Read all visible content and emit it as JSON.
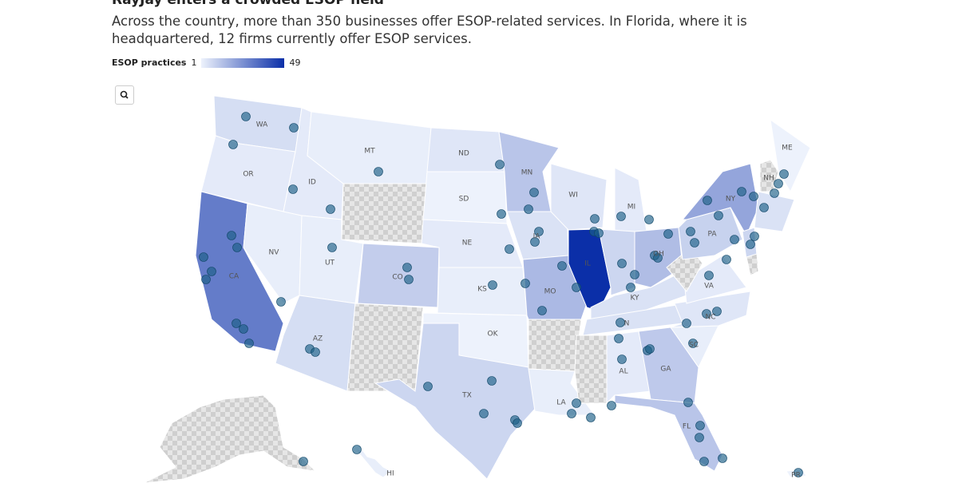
{
  "header": {
    "title": "RayJay enters a crowded ESOP field",
    "subtitle": "Across the country, more than 350 businesses offer ESOP-related services. In Florida, where it is headquartered, 12 firms currently offer ESOP services."
  },
  "chart_data": {
    "type": "choropleth",
    "legend_title": "ESOP practices",
    "legend_min": 1,
    "legend_max": 49,
    "colors": [
      "#edf2fc",
      "#0b2fa8"
    ],
    "regions": [
      {
        "name": "WA",
        "value": 6
      },
      {
        "name": "OR",
        "value": 3
      },
      {
        "name": "CA",
        "value": 30
      },
      {
        "name": "NV",
        "value": 2
      },
      {
        "name": "ID",
        "value": 3
      },
      {
        "name": "MT",
        "value": 2
      },
      {
        "name": null,
        "value": null
      },
      {
        "name": "UT",
        "value": 2
      },
      {
        "name": "CO",
        "value": 10
      },
      {
        "name": "AZ",
        "value": 6
      },
      {
        "name": null,
        "value": null
      },
      {
        "name": "ND",
        "value": 4
      },
      {
        "name": "SD",
        "value": 1
      },
      {
        "name": "NE",
        "value": 3
      },
      {
        "name": "KS",
        "value": 2
      },
      {
        "name": "OK",
        "value": 1
      },
      {
        "name": "TX",
        "value": 8
      },
      {
        "name": "MN",
        "value": 12
      },
      {
        "name": "IA",
        "value": 5
      },
      {
        "name": "MO",
        "value": 15
      },
      {
        "name": null,
        "value": null
      },
      {
        "name": "LA",
        "value": 2
      },
      {
        "name": "WI",
        "value": 4
      },
      {
        "name": "IL",
        "value": 49
      },
      {
        "name": "MI",
        "value": 3
      },
      {
        "name": null,
        "value": 8
      },
      {
        "name": "OH",
        "value": 14
      },
      {
        "name": "KY",
        "value": 5
      },
      {
        "name": "N",
        "value": 5
      },
      {
        "name": null,
        "value": null
      },
      {
        "name": "AL",
        "value": 3
      },
      {
        "name": "GA",
        "value": 11
      },
      {
        "name": "FL",
        "value": 12
      },
      {
        "name": "SC",
        "value": 2
      },
      {
        "name": "NC",
        "value": 4
      },
      {
        "name": "VA",
        "value": 3
      },
      {
        "name": null,
        "value": null
      },
      {
        "name": "PA",
        "value": 9
      },
      {
        "name": "NY",
        "value": 20
      },
      {
        "name": "ME",
        "value": 1
      },
      {
        "name": "NH",
        "value": null
      },
      {
        "name": null,
        "value": 5
      },
      {
        "name": null,
        "value": 8
      },
      {
        "name": null,
        "value": null
      },
      {
        "name": "HI",
        "value": 2
      },
      {
        "name": "PR",
        "value": 1
      }
    ]
  }
}
